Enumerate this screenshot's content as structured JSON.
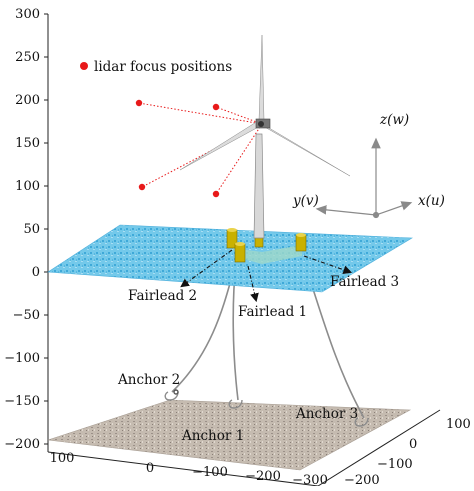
{
  "legend": {
    "label": "lidar focus positions",
    "marker_color": "#e8191a"
  },
  "z_axis_ticks": [
    "300",
    "250",
    "200",
    "150",
    "100",
    "50",
    "0",
    "−50",
    "−100",
    "−150",
    "−200"
  ],
  "x_axis_ticks": [
    "100",
    "0",
    "−100",
    "−200",
    "−300"
  ],
  "y_axis_ticks": [
    "100",
    "0",
    "−100",
    "−200"
  ],
  "coordinate_frame": {
    "z": "z(w)",
    "y": "y(v)",
    "x": "x(u)"
  },
  "labels": {
    "fairlead_1": "Fairlead 1",
    "fairlead_2": "Fairlead 2",
    "fairlead_3": "Fairlead 3",
    "anchor_1": "Anchor 1",
    "anchor_2": "Anchor 2",
    "anchor_3": "Anchor 3"
  },
  "colors": {
    "sea": "#6cc6e8",
    "seabed": "#bdb3a8",
    "platform": "#c9b100",
    "lidar_beam": "#e8191a",
    "mooring": "#8c8c8c"
  }
}
